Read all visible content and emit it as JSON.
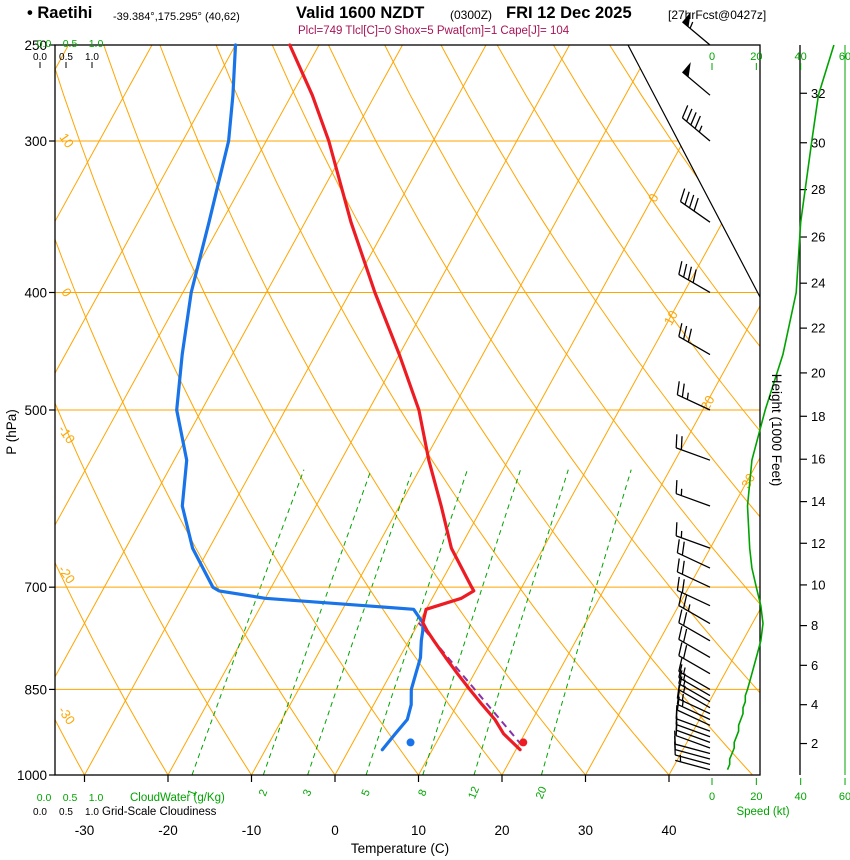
{
  "header": {
    "bullet": "•",
    "station": "Raetihi",
    "coords": "-39.384°,175.295° (40,62)",
    "valid_main": "Valid 1600 NZDT",
    "valid_utc": "(0300Z)",
    "valid_date": "FRI 12 Dec 2025",
    "forecast": "[27hrFcst@0427z]",
    "indices": "Plcl=749 Tlcl[C]=0 Shox=5 Pwat[cm]=1 Cape[J]= 104"
  },
  "axes": {
    "pressure_label": "P (hPa)",
    "pressure_ticks": [
      250,
      300,
      400,
      500,
      700,
      850,
      1000
    ],
    "temp_label": "Temperature (C)",
    "temp_ticks": [
      -30,
      -20,
      -10,
      0,
      10,
      20,
      30,
      40
    ],
    "height_label": "Height (1000 Feet)",
    "speed_label": "Speed (kt)",
    "speed_ticks": [
      0,
      20,
      40,
      60
    ],
    "cloudwater_label": "CloudWater (g/Kg)",
    "cloudwater_ticks": [
      "0.0",
      "0.5",
      "1.0"
    ],
    "cloudiness_label": "Grid-Scale Cloudiness",
    "cloudiness_ticks": [
      "0.0",
      "0.5",
      "1.0"
    ]
  },
  "colors": {
    "orange": "#FFA500",
    "green": "#00A400",
    "red": "#ED1C24",
    "blue": "#1874E8",
    "purple": "#8833AA",
    "magenta": "#A61457",
    "black": "#000000"
  },
  "chart_data": {
    "type": "line",
    "variant": "skew-t-log-p-sounding",
    "pressure_range_hpa": [
      250,
      1000
    ],
    "temp_axis_range_c": [
      -35,
      45
    ],
    "grid": "orange isotherms (skewed) and dry adiabats; green dashed mixing-ratio lines",
    "adiabat_label_values": [
      10,
      0,
      -10,
      -20,
      -30
    ],
    "isotherm_label_values": [
      0,
      10,
      20,
      30
    ],
    "mixing_ratio_g_kg": [
      1,
      2,
      3,
      5,
      8,
      12,
      20
    ],
    "sounding": {
      "pressure_hpa": [
        953,
        925,
        900,
        875,
        850,
        825,
        800,
        775,
        760,
        749,
        730,
        715,
        705,
        700,
        650,
        600,
        550,
        500,
        450,
        400,
        350,
        300,
        275,
        250
      ],
      "temperature_c": [
        20.5,
        17.5,
        15.5,
        13,
        10.5,
        8,
        5.5,
        3,
        1.5,
        0.5,
        0,
        3.5,
        4.5,
        4,
        -1,
        -5,
        -9.5,
        -14,
        -20,
        -27,
        -34.5,
        -42.5,
        -47.5,
        -53.5
      ],
      "dewpoint_c": [
        4,
        4.5,
        5,
        4.5,
        3.5,
        3,
        2.5,
        1.5,
        1,
        0.5,
        -1.5,
        -20,
        -26,
        -27,
        -32,
        -36,
        -38.5,
        -43,
        -46,
        -49,
        -51.5,
        -54.5,
        -57,
        -60
      ]
    },
    "parcel": {
      "surface_pressure": 945,
      "surface_temp": 20.4,
      "lcl_pressure": 749,
      "lcl_temp": 0
    },
    "surface_markers": [
      {
        "color": "red",
        "pressure": 940,
        "temp": 20.4
      },
      {
        "color": "blue",
        "pressure": 940,
        "temp": 6.9
      }
    ],
    "winds_p_dir_kt": [
      [
        250,
        310,
        55
      ],
      [
        275,
        310,
        48
      ],
      [
        300,
        310,
        45
      ],
      [
        350,
        305,
        40
      ],
      [
        400,
        300,
        38
      ],
      [
        450,
        300,
        32
      ],
      [
        500,
        295,
        24
      ],
      [
        550,
        290,
        18
      ],
      [
        600,
        290,
        16
      ],
      [
        650,
        290,
        17
      ],
      [
        675,
        295,
        18
      ],
      [
        700,
        295,
        20
      ],
      [
        725,
        295,
        22
      ],
      [
        750,
        300,
        23
      ],
      [
        775,
        300,
        22
      ],
      [
        800,
        300,
        20
      ],
      [
        825,
        300,
        18
      ],
      [
        850,
        300,
        16
      ],
      [
        860,
        300,
        15
      ],
      [
        870,
        300,
        15
      ],
      [
        880,
        300,
        14
      ],
      [
        890,
        295,
        14
      ],
      [
        900,
        295,
        13
      ],
      [
        910,
        295,
        12
      ],
      [
        920,
        290,
        12
      ],
      [
        930,
        290,
        11
      ],
      [
        940,
        290,
        10
      ],
      [
        950,
        290,
        10
      ],
      [
        960,
        285,
        9
      ],
      [
        970,
        285,
        8
      ],
      [
        980,
        285,
        8
      ],
      [
        990,
        285,
        7
      ]
    ],
    "speed_axis_kt": [
      0,
      20,
      40,
      60
    ],
    "height_scale_kft_hpa": [
      [
        2,
        942
      ],
      [
        4,
        875
      ],
      [
        6,
        812
      ],
      [
        8,
        753
      ],
      [
        10,
        697
      ],
      [
        12,
        644
      ],
      [
        14,
        595
      ],
      [
        16,
        549
      ],
      [
        18,
        506
      ],
      [
        20,
        466
      ],
      [
        22,
        428
      ],
      [
        24,
        393
      ],
      [
        26,
        360
      ],
      [
        28,
        329
      ],
      [
        30,
        301
      ],
      [
        32,
        274
      ]
    ]
  }
}
